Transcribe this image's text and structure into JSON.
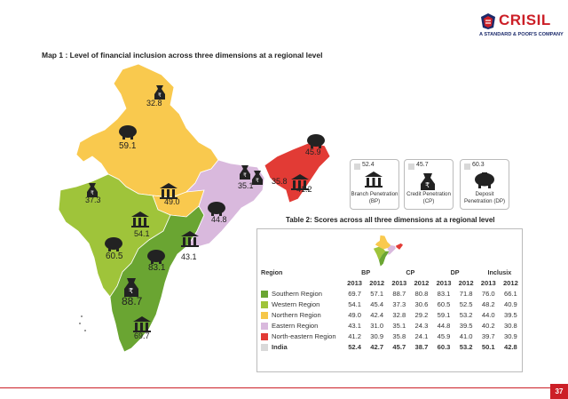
{
  "logo": {
    "brand": "CRISIL",
    "tagline": "A STANDARD & POOR'S COMPANY",
    "color": "#cc1f27"
  },
  "map_title": "Map 1 : Level of financial inclusion across three dimensions at a regional level",
  "map_labels": {
    "north_top": "32.8",
    "north_mid": "59.1",
    "north_east": "49.0",
    "west_top": "37.3",
    "west_mid": "54.1",
    "west_bottom": "60.5",
    "south_top": "83.1",
    "south_mid": "88.7",
    "south_bottom": "69.7",
    "east_mid": "44.8",
    "east_bottom": "43.1",
    "east_top": "35.1",
    "ne_top": "45.9",
    "ne_mid": "35.8",
    "ne_bottom": "41.2"
  },
  "legend": [
    {
      "value": "52.4",
      "label": "Branch Penetration (BP)",
      "icon": "bank-icon"
    },
    {
      "value": "45.7",
      "label": "Credit Penetration (CP)",
      "icon": "money-bag-icon"
    },
    {
      "value": "60.3",
      "label": "Deposit Penetration (DP)",
      "icon": "piggy-bank-icon"
    }
  ],
  "table_title": "Table 2: Scores across all three dimensions at a regional level",
  "table": {
    "region_header": "Region",
    "groups": [
      "BP",
      "CP",
      "DP",
      "Inclusix"
    ],
    "years": [
      "2013",
      "2012",
      "2013",
      "2012",
      "2013",
      "2012",
      "2013",
      "2012"
    ],
    "rows": [
      {
        "region": "Southern Region",
        "color": "#6aa532",
        "values": [
          "69.7",
          "57.1",
          "88.7",
          "80.8",
          "83.1",
          "71.8",
          "76.0",
          "66.1"
        ]
      },
      {
        "region": "Western Region",
        "color": "#9fc43a",
        "values": [
          "54.1",
          "45.4",
          "37.3",
          "30.6",
          "60.5",
          "52.5",
          "48.2",
          "40.9"
        ]
      },
      {
        "region": "Northern Region",
        "color": "#f6c74a",
        "values": [
          "49.0",
          "42.4",
          "32.8",
          "29.2",
          "59.1",
          "53.2",
          "44.0",
          "39.5"
        ]
      },
      {
        "region": "Eastern Region",
        "color": "#d9b9dd",
        "values": [
          "43.1",
          "31.0",
          "35.1",
          "24.3",
          "44.8",
          "39.5",
          "40.2",
          "30.8"
        ]
      },
      {
        "region": "North-eastern Region",
        "color": "#e23b35",
        "values": [
          "41.2",
          "30.9",
          "35.8",
          "24.1",
          "45.9",
          "41.0",
          "39.7",
          "30.9"
        ]
      },
      {
        "region": "India",
        "color": "#d9d9d9",
        "values": [
          "52.4",
          "42.7",
          "45.7",
          "38.7",
          "60.3",
          "53.2",
          "50.1",
          "42.8"
        ]
      }
    ]
  },
  "page_number": "37"
}
